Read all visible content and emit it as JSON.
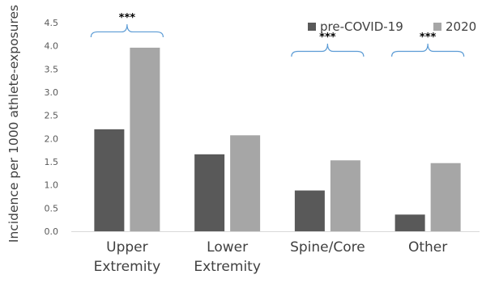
{
  "chart_data": {
    "type": "bar",
    "title": "",
    "xlabel": "",
    "ylabel": "Incidence per 1000 athlete-exposures",
    "categories": [
      [
        "Upper",
        "Extremity"
      ],
      [
        "Lower",
        "Extremity"
      ],
      [
        "Spine/Core"
      ],
      [
        "Other"
      ]
    ],
    "series": [
      {
        "name": "pre-COVID-19",
        "color": "#595959",
        "values": [
          2.2,
          1.66,
          0.88,
          0.36
        ]
      },
      {
        "name": "2020",
        "color": "#a6a6a6",
        "values": [
          3.96,
          2.07,
          1.53,
          1.47
        ]
      }
    ],
    "ylim": [
      0,
      4.5
    ],
    "yticks": [
      "0.0",
      "0.5",
      "1.0",
      "1.5",
      "2.0",
      "2.5",
      "3.0",
      "3.5",
      "4.0",
      "4.5"
    ],
    "grid": false,
    "legend_position": "top-right",
    "annotations": [
      {
        "category_index": 0,
        "text": "***",
        "bracket_color": "#5b9bd5"
      },
      {
        "category_index": 2,
        "text": "***",
        "bracket_color": "#5b9bd5"
      },
      {
        "category_index": 3,
        "text": "***",
        "bracket_color": "#5b9bd5"
      }
    ]
  }
}
